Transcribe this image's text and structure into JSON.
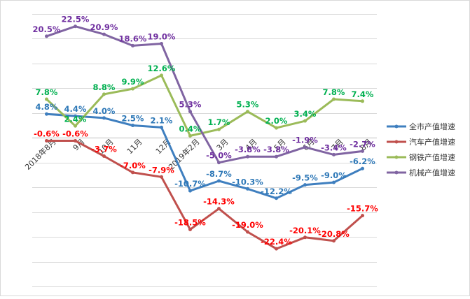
{
  "chart_data": {
    "type": "line",
    "title": "",
    "xlabel": "",
    "ylabel": "",
    "categories": [
      "2018年8月",
      "9月",
      "10月",
      "11月",
      "12月",
      "2019年2月",
      "3月",
      "4月",
      "5月",
      "6月",
      "7月",
      "8月"
    ],
    "ylim": [
      -30,
      25
    ],
    "grid": true,
    "legend": "right",
    "series": [
      {
        "name": "全市产值增速",
        "color": "#3f7fbf",
        "label_color": "#2e78b7",
        "values": [
          4.8,
          4.4,
          4.0,
          2.5,
          2.1,
          -10.7,
          -8.7,
          -10.3,
          -12.2,
          -9.5,
          -9.0,
          -6.2
        ],
        "labels": [
          "4.8%",
          "4.4%",
          "4.0%",
          "2.5%",
          "2.1%",
          "-10.7%",
          "-8.7%",
          "-10.3%",
          "-12.2%",
          "-9.5%",
          "-9.0%",
          "-6.2%"
        ]
      },
      {
        "name": "汽车产值增速",
        "color": "#c0504d",
        "label_color": "#ff0000",
        "values": [
          -0.6,
          -0.6,
          -3.7,
          -7.0,
          -7.9,
          -18.5,
          -14.3,
          -19.0,
          -22.4,
          -20.1,
          -20.8,
          -15.7
        ],
        "labels": [
          "-0.6%",
          "-0.6%",
          "-3.7%",
          "-7.0%",
          "-7.9%",
          "-18.5%",
          "-14.3%",
          "-19.0%",
          "-22.4%",
          "-20.1%",
          "-20.8%",
          "-15.7%"
        ]
      },
      {
        "name": "钢铁产值增速",
        "color": "#9bbb59",
        "label_color": "#00b050",
        "values": [
          7.8,
          2.4,
          8.8,
          9.9,
          12.6,
          0.4,
          1.7,
          5.3,
          2.0,
          3.4,
          7.8,
          7.4
        ],
        "labels": [
          "7.8%",
          "2.4%",
          "8.8%",
          "9.9%",
          "12.6%",
          "0.4%",
          "1.7%",
          "5.3%",
          "2.0%",
          "3.4%",
          "7.8%",
          "7.4%"
        ]
      },
      {
        "name": "机械产值增速",
        "color": "#8064a2",
        "label_color": "#7030a0",
        "values": [
          20.5,
          22.5,
          20.9,
          18.6,
          19.0,
          5.3,
          -5.0,
          -3.8,
          -3.8,
          -1.9,
          -3.4,
          -2.7
        ],
        "labels": [
          "20.5%",
          "22.5%",
          "20.9%",
          "18.6%",
          "19.0%",
          "5.3%",
          "-5.0%",
          "-3.8%",
          "-3.8%",
          "-1.9%",
          "-3.4%",
          "-2.7%"
        ]
      }
    ]
  }
}
